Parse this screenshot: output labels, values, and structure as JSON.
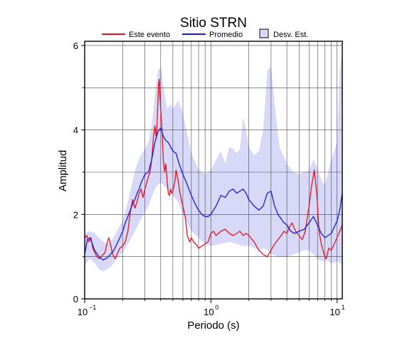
{
  "chart_data": {
    "type": "line",
    "title": "Sitio STRN",
    "xlabel": "Periodo (s)",
    "ylabel": "Amplitud",
    "x_scale": "log",
    "xlim": [
      0.1,
      11
    ],
    "ylim": [
      0,
      6.1
    ],
    "x_ticks": [
      {
        "value": 0.1,
        "base": "10",
        "exp": "−1"
      },
      {
        "value": 1,
        "base": "10",
        "exp": "0"
      },
      {
        "value": 10,
        "base": "10",
        "exp": "1"
      }
    ],
    "y_ticks": [
      "0",
      "2",
      "4",
      "6"
    ],
    "grid": true,
    "legend": {
      "placement": "top-center",
      "entries": [
        {
          "label": "Este evento",
          "color": "#e0141e",
          "kind": "line"
        },
        {
          "label": "Promedio",
          "color": "#1a1adc",
          "kind": "line"
        },
        {
          "label": "Desv. Est.",
          "color": "#d8d8f8",
          "kind": "patch"
        }
      ]
    },
    "series": [
      {
        "name": "Este evento",
        "color": "#e0141e",
        "points": [
          [
            0.1,
            1.45
          ],
          [
            0.104,
            1.5
          ],
          [
            0.108,
            1.35
          ],
          [
            0.112,
            1.45
          ],
          [
            0.116,
            1.2
          ],
          [
            0.12,
            1.1
          ],
          [
            0.125,
            1.0
          ],
          [
            0.13,
            0.95
          ],
          [
            0.135,
            1.0
          ],
          [
            0.14,
            1.05
          ],
          [
            0.145,
            1.1
          ],
          [
            0.15,
            1.3
          ],
          [
            0.155,
            1.45
          ],
          [
            0.16,
            1.3
          ],
          [
            0.165,
            1.1
          ],
          [
            0.17,
            1.0
          ],
          [
            0.175,
            0.95
          ],
          [
            0.18,
            1.05
          ],
          [
            0.19,
            1.2
          ],
          [
            0.2,
            1.25
          ],
          [
            0.21,
            1.35
          ],
          [
            0.22,
            1.6
          ],
          [
            0.23,
            2.05
          ],
          [
            0.24,
            2.35
          ],
          [
            0.25,
            2.15
          ],
          [
            0.26,
            2.3
          ],
          [
            0.27,
            2.5
          ],
          [
            0.28,
            2.6
          ],
          [
            0.29,
            2.4
          ],
          [
            0.3,
            2.6
          ],
          [
            0.31,
            2.75
          ],
          [
            0.32,
            2.9
          ],
          [
            0.33,
            3.0
          ],
          [
            0.34,
            3.3
          ],
          [
            0.35,
            3.8
          ],
          [
            0.36,
            4.1
          ],
          [
            0.37,
            3.8
          ],
          [
            0.38,
            4.6
          ],
          [
            0.385,
            5.1
          ],
          [
            0.39,
            5.2
          ],
          [
            0.395,
            4.8
          ],
          [
            0.4,
            4.5
          ],
          [
            0.41,
            4.0
          ],
          [
            0.42,
            3.3
          ],
          [
            0.43,
            3.0
          ],
          [
            0.44,
            3.2
          ],
          [
            0.45,
            2.8
          ],
          [
            0.46,
            2.5
          ],
          [
            0.47,
            2.45
          ],
          [
            0.48,
            2.6
          ],
          [
            0.49,
            2.5
          ],
          [
            0.5,
            2.55
          ],
          [
            0.52,
            2.8
          ],
          [
            0.53,
            3.05
          ],
          [
            0.55,
            2.8
          ],
          [
            0.57,
            2.5
          ],
          [
            0.6,
            2.2
          ],
          [
            0.63,
            1.9
          ],
          [
            0.65,
            1.5
          ],
          [
            0.68,
            1.35
          ],
          [
            0.7,
            1.45
          ],
          [
            0.73,
            1.35
          ],
          [
            0.76,
            1.3
          ],
          [
            0.8,
            1.2
          ],
          [
            0.85,
            1.25
          ],
          [
            0.9,
            1.3
          ],
          [
            0.95,
            1.35
          ],
          [
            1.0,
            1.55
          ],
          [
            1.05,
            1.6
          ],
          [
            1.1,
            1.5
          ],
          [
            1.15,
            1.55
          ],
          [
            1.2,
            1.6
          ],
          [
            1.3,
            1.65
          ],
          [
            1.4,
            1.55
          ],
          [
            1.5,
            1.5
          ],
          [
            1.6,
            1.55
          ],
          [
            1.7,
            1.6
          ],
          [
            1.8,
            1.5
          ],
          [
            1.9,
            1.55
          ],
          [
            2.0,
            1.5
          ],
          [
            2.2,
            1.35
          ],
          [
            2.4,
            1.15
          ],
          [
            2.6,
            1.05
          ],
          [
            2.8,
            1.0
          ],
          [
            3.0,
            1.15
          ],
          [
            3.2,
            1.3
          ],
          [
            3.4,
            1.4
          ],
          [
            3.6,
            1.5
          ],
          [
            3.8,
            1.6
          ],
          [
            4.0,
            1.55
          ],
          [
            4.2,
            1.7
          ],
          [
            4.4,
            1.8
          ],
          [
            4.7,
            1.6
          ],
          [
            5.0,
            1.5
          ],
          [
            5.3,
            1.4
          ],
          [
            5.6,
            1.6
          ],
          [
            6.0,
            2.2
          ],
          [
            6.3,
            2.7
          ],
          [
            6.6,
            3.05
          ],
          [
            6.9,
            2.5
          ],
          [
            7.2,
            1.6
          ],
          [
            7.5,
            1.3
          ],
          [
            7.9,
            1.05
          ],
          [
            8.2,
            0.95
          ],
          [
            8.6,
            1.2
          ],
          [
            9.0,
            1.15
          ],
          [
            9.5,
            1.3
          ],
          [
            10.0,
            1.45
          ],
          [
            10.5,
            1.6
          ],
          [
            11.0,
            1.75
          ]
        ]
      },
      {
        "name": "Promedio",
        "color": "#1a1adc",
        "points": [
          [
            0.1,
            1.05
          ],
          [
            0.105,
            1.4
          ],
          [
            0.11,
            1.45
          ],
          [
            0.115,
            1.3
          ],
          [
            0.12,
            1.15
          ],
          [
            0.13,
            1.0
          ],
          [
            0.14,
            0.92
          ],
          [
            0.15,
            0.97
          ],
          [
            0.16,
            1.05
          ],
          [
            0.17,
            1.15
          ],
          [
            0.18,
            1.3
          ],
          [
            0.19,
            1.45
          ],
          [
            0.2,
            1.6
          ],
          [
            0.21,
            1.8
          ],
          [
            0.22,
            1.95
          ],
          [
            0.23,
            2.1
          ],
          [
            0.24,
            2.25
          ],
          [
            0.25,
            2.35
          ],
          [
            0.26,
            2.5
          ],
          [
            0.27,
            2.6
          ],
          [
            0.28,
            2.75
          ],
          [
            0.29,
            2.85
          ],
          [
            0.3,
            2.95
          ],
          [
            0.32,
            3.0
          ],
          [
            0.34,
            3.3
          ],
          [
            0.36,
            3.7
          ],
          [
            0.38,
            3.95
          ],
          [
            0.4,
            4.05
          ],
          [
            0.42,
            3.85
          ],
          [
            0.44,
            3.75
          ],
          [
            0.46,
            3.7
          ],
          [
            0.48,
            3.6
          ],
          [
            0.5,
            3.5
          ],
          [
            0.53,
            3.45
          ],
          [
            0.56,
            3.2
          ],
          [
            0.6,
            2.95
          ],
          [
            0.65,
            2.7
          ],
          [
            0.7,
            2.45
          ],
          [
            0.75,
            2.25
          ],
          [
            0.8,
            2.1
          ],
          [
            0.85,
            2.0
          ],
          [
            0.9,
            1.95
          ],
          [
            0.95,
            1.95
          ],
          [
            1.0,
            2.0
          ],
          [
            1.1,
            2.2
          ],
          [
            1.2,
            2.45
          ],
          [
            1.3,
            2.4
          ],
          [
            1.4,
            2.55
          ],
          [
            1.5,
            2.6
          ],
          [
            1.6,
            2.5
          ],
          [
            1.7,
            2.55
          ],
          [
            1.8,
            2.6
          ],
          [
            1.9,
            2.5
          ],
          [
            2.0,
            2.35
          ],
          [
            2.2,
            2.2
          ],
          [
            2.4,
            2.1
          ],
          [
            2.6,
            2.2
          ],
          [
            2.8,
            2.5
          ],
          [
            3.0,
            2.55
          ],
          [
            3.2,
            2.2
          ],
          [
            3.4,
            2.0
          ],
          [
            3.6,
            1.9
          ],
          [
            3.8,
            1.8
          ],
          [
            4.0,
            1.75
          ],
          [
            4.3,
            1.6
          ],
          [
            4.6,
            1.55
          ],
          [
            5.0,
            1.6
          ],
          [
            5.5,
            1.65
          ],
          [
            6.0,
            1.8
          ],
          [
            6.5,
            1.95
          ],
          [
            7.0,
            1.75
          ],
          [
            7.5,
            1.55
          ],
          [
            8.0,
            1.45
          ],
          [
            8.5,
            1.5
          ],
          [
            9.0,
            1.55
          ],
          [
            9.5,
            1.7
          ],
          [
            10.0,
            1.85
          ],
          [
            10.5,
            2.1
          ],
          [
            11.0,
            2.5
          ]
        ]
      }
    ],
    "std_band": {
      "color": "#d8d8f8",
      "upper": [
        [
          0.1,
          1.55
        ],
        [
          0.11,
          1.6
        ],
        [
          0.12,
          1.55
        ],
        [
          0.13,
          1.45
        ],
        [
          0.14,
          1.35
        ],
        [
          0.15,
          1.3
        ],
        [
          0.16,
          1.35
        ],
        [
          0.17,
          1.45
        ],
        [
          0.18,
          1.6
        ],
        [
          0.2,
          1.85
        ],
        [
          0.22,
          2.3
        ],
        [
          0.24,
          2.8
        ],
        [
          0.26,
          3.2
        ],
        [
          0.28,
          3.4
        ],
        [
          0.3,
          3.55
        ],
        [
          0.32,
          3.7
        ],
        [
          0.34,
          4.1
        ],
        [
          0.36,
          4.8
        ],
        [
          0.38,
          5.4
        ],
        [
          0.4,
          5.5
        ],
        [
          0.42,
          5.05
        ],
        [
          0.45,
          4.5
        ],
        [
          0.48,
          4.6
        ],
        [
          0.5,
          4.5
        ],
        [
          0.55,
          4.7
        ],
        [
          0.6,
          4.4
        ],
        [
          0.65,
          3.9
        ],
        [
          0.7,
          3.45
        ],
        [
          0.8,
          3.05
        ],
        [
          0.9,
          2.95
        ],
        [
          1.0,
          3.05
        ],
        [
          1.1,
          3.3
        ],
        [
          1.2,
          3.5
        ],
        [
          1.3,
          3.2
        ],
        [
          1.4,
          3.6
        ],
        [
          1.5,
          3.55
        ],
        [
          1.6,
          3.45
        ],
        [
          1.7,
          3.55
        ],
        [
          1.8,
          4.3
        ],
        [
          1.9,
          4.0
        ],
        [
          2.0,
          3.6
        ],
        [
          2.2,
          3.4
        ],
        [
          2.4,
          3.5
        ],
        [
          2.6,
          4.0
        ],
        [
          2.8,
          5.4
        ],
        [
          3.0,
          5.5
        ],
        [
          3.2,
          4.6
        ],
        [
          3.5,
          3.6
        ],
        [
          4.0,
          3.2
        ],
        [
          4.5,
          3.0
        ],
        [
          5.0,
          2.95
        ],
        [
          5.5,
          3.0
        ],
        [
          6.0,
          3.05
        ],
        [
          6.5,
          3.3
        ],
        [
          7.0,
          3.1
        ],
        [
          7.5,
          2.8
        ],
        [
          8.0,
          2.7
        ],
        [
          8.5,
          3.0
        ],
        [
          9.0,
          3.3
        ],
        [
          9.5,
          3.5
        ],
        [
          10.0,
          3.7
        ],
        [
          10.5,
          5.4
        ],
        [
          11.0,
          5.9
        ]
      ],
      "lower": [
        [
          0.1,
          0.8
        ],
        [
          0.11,
          0.95
        ],
        [
          0.12,
          0.85
        ],
        [
          0.13,
          0.7
        ],
        [
          0.14,
          0.65
        ],
        [
          0.15,
          0.7
        ],
        [
          0.16,
          0.75
        ],
        [
          0.17,
          0.85
        ],
        [
          0.18,
          0.95
        ],
        [
          0.2,
          1.1
        ],
        [
          0.22,
          1.3
        ],
        [
          0.24,
          1.5
        ],
        [
          0.26,
          1.7
        ],
        [
          0.28,
          1.9
        ],
        [
          0.3,
          2.05
        ],
        [
          0.32,
          2.2
        ],
        [
          0.34,
          2.4
        ],
        [
          0.36,
          2.6
        ],
        [
          0.38,
          2.7
        ],
        [
          0.4,
          2.75
        ],
        [
          0.42,
          2.7
        ],
        [
          0.45,
          2.6
        ],
        [
          0.48,
          2.5
        ],
        [
          0.5,
          2.45
        ],
        [
          0.55,
          2.3
        ],
        [
          0.6,
          2.0
        ],
        [
          0.65,
          1.8
        ],
        [
          0.7,
          1.6
        ],
        [
          0.8,
          1.45
        ],
        [
          0.9,
          1.3
        ],
        [
          1.0,
          1.25
        ],
        [
          1.2,
          1.3
        ],
        [
          1.4,
          1.35
        ],
        [
          1.6,
          1.3
        ],
        [
          1.8,
          1.25
        ],
        [
          2.0,
          1.25
        ],
        [
          2.2,
          1.2
        ],
        [
          2.4,
          1.15
        ],
        [
          2.6,
          1.2
        ],
        [
          2.8,
          1.15
        ],
        [
          3.0,
          1.05
        ],
        [
          3.5,
          1.0
        ],
        [
          4.0,
          1.0
        ],
        [
          4.5,
          1.05
        ],
        [
          5.0,
          1.1
        ],
        [
          5.5,
          1.15
        ],
        [
          6.0,
          1.15
        ],
        [
          6.5,
          1.05
        ],
        [
          7.0,
          0.95
        ],
        [
          7.5,
          0.9
        ],
        [
          8.0,
          0.9
        ],
        [
          8.5,
          0.9
        ],
        [
          9.0,
          0.85
        ],
        [
          9.5,
          0.85
        ],
        [
          10.0,
          0.9
        ],
        [
          10.5,
          0.85
        ],
        [
          11.0,
          0.8
        ]
      ]
    }
  }
}
